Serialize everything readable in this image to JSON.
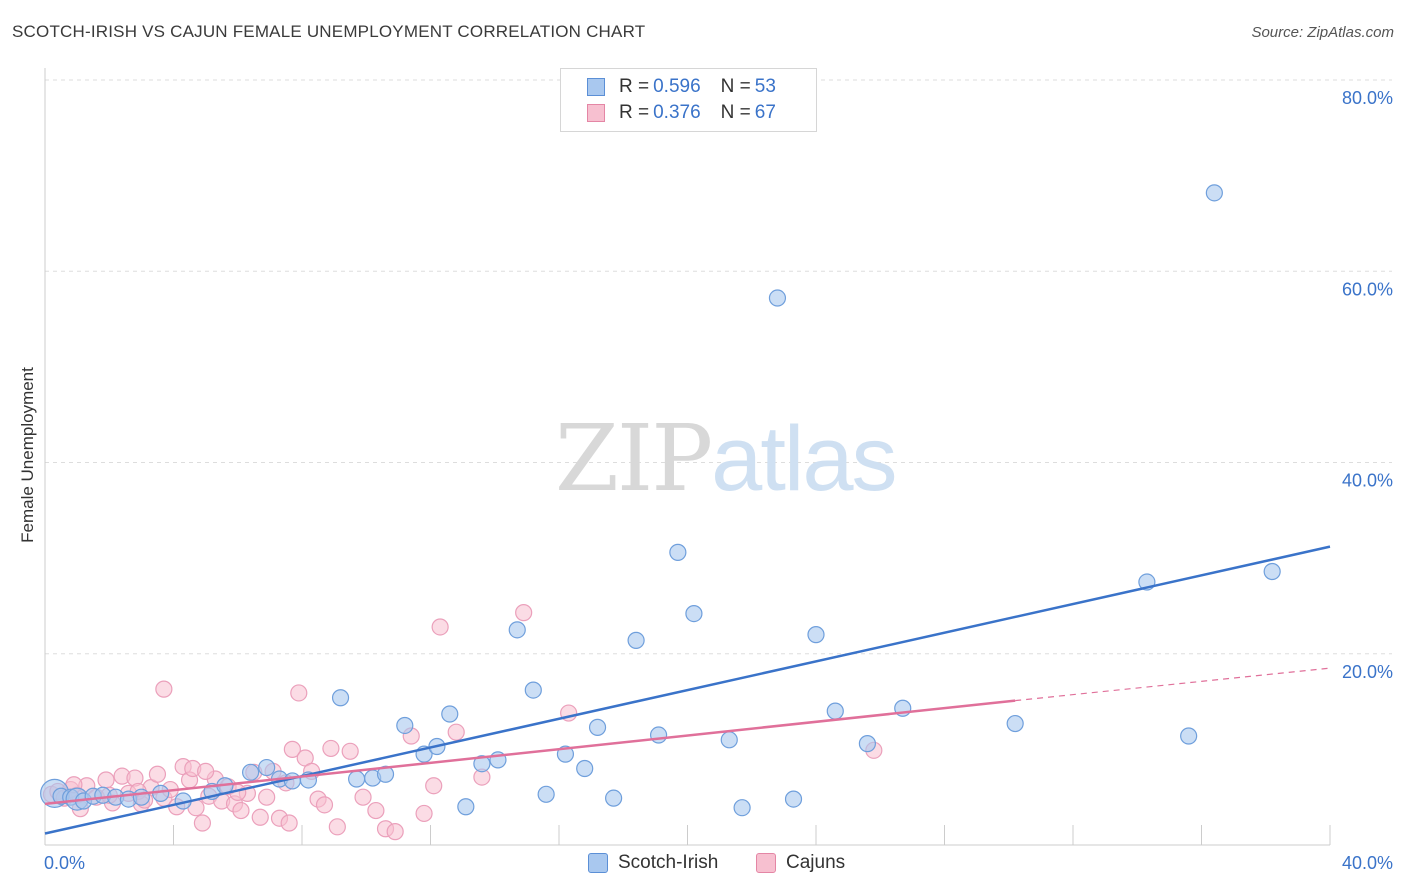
{
  "header": {
    "title": "SCOTCH-IRISH VS CAJUN FEMALE UNEMPLOYMENT CORRELATION CHART",
    "source": "Source: ZipAtlas.com"
  },
  "watermark": {
    "zip": "ZIP",
    "atlas": "atlas"
  },
  "legend": {
    "rows": [
      {
        "r_label": "R =",
        "r_value": "0.596",
        "n_label": "N =",
        "n_value": "53",
        "color": "#a9c8ef",
        "border": "#5b8fd6"
      },
      {
        "r_label": "R =",
        "r_value": "0.376",
        "n_label": "N =",
        "n_value": "67",
        "color": "#f7c0d0",
        "border": "#e486a5"
      }
    ]
  },
  "bottom_legend": {
    "series1": "Scotch-Irish",
    "series2": "Cajuns"
  },
  "chart_data": {
    "type": "scatter",
    "ylabel": "Female Unemployment",
    "xlim": [
      0,
      40
    ],
    "ylim": [
      0,
      80
    ],
    "x_tick_labels": [
      "0.0%",
      "40.0%"
    ],
    "y_tick_labels": [
      "20.0%",
      "40.0%",
      "60.0%",
      "80.0%"
    ],
    "y_ticks": [
      20,
      40,
      60,
      80
    ],
    "grid": true,
    "legend_position": "top-center",
    "colors": {
      "blue": "#3a73c9",
      "blue_fill": "#a9c8ef",
      "pink": "#e0709a",
      "pink_fill": "#f7c0d0",
      "tick_label": "#3a73c9"
    },
    "series": [
      {
        "name": "Scotch-Irish",
        "trend": {
          "x": [
            0,
            40
          ],
          "y": [
            1.2,
            31.2
          ],
          "dashed_from": null
        },
        "points": [
          [
            0.3,
            5.4
          ],
          [
            0.5,
            5.1
          ],
          [
            0.8,
            5.0
          ],
          [
            1.0,
            4.8
          ],
          [
            1.2,
            4.6
          ],
          [
            1.5,
            5.1
          ],
          [
            1.8,
            5.2
          ],
          [
            2.2,
            5.0
          ],
          [
            2.6,
            4.8
          ],
          [
            3.0,
            5.0
          ],
          [
            3.6,
            5.4
          ],
          [
            4.3,
            4.6
          ],
          [
            5.2,
            5.6
          ],
          [
            5.6,
            6.2
          ],
          [
            6.4,
            7.6
          ],
          [
            6.9,
            8.1
          ],
          [
            7.3,
            6.9
          ],
          [
            7.7,
            6.7
          ],
          [
            8.2,
            6.8
          ],
          [
            9.2,
            15.4
          ],
          [
            9.7,
            6.9
          ],
          [
            10.2,
            7.0
          ],
          [
            10.6,
            7.4
          ],
          [
            11.2,
            12.5
          ],
          [
            11.8,
            9.5
          ],
          [
            12.2,
            10.3
          ],
          [
            12.6,
            13.7
          ],
          [
            13.1,
            4.0
          ],
          [
            13.6,
            8.5
          ],
          [
            14.1,
            8.9
          ],
          [
            14.7,
            22.5
          ],
          [
            15.2,
            16.2
          ],
          [
            15.6,
            5.3
          ],
          [
            16.2,
            9.5
          ],
          [
            16.8,
            8.0
          ],
          [
            17.2,
            12.3
          ],
          [
            17.7,
            4.9
          ],
          [
            18.4,
            21.4
          ],
          [
            19.1,
            11.5
          ],
          [
            19.7,
            30.6
          ],
          [
            20.2,
            24.2
          ],
          [
            21.3,
            11.0
          ],
          [
            21.7,
            3.9
          ],
          [
            22.8,
            57.2
          ],
          [
            23.3,
            4.8
          ],
          [
            24.0,
            22.0
          ],
          [
            24.6,
            14.0
          ],
          [
            25.6,
            10.6
          ],
          [
            26.7,
            14.3
          ],
          [
            30.2,
            12.7
          ],
          [
            34.3,
            27.5
          ],
          [
            35.6,
            11.4
          ],
          [
            36.4,
            68.2
          ],
          [
            38.2,
            28.6
          ]
        ]
      },
      {
        "name": "Cajuns",
        "trend": {
          "x": [
            0,
            30.2
          ],
          "y": [
            4.3,
            15.1
          ],
          "dashed_to": [
            40,
            18.5
          ]
        },
        "points": [
          [
            0.2,
            5.3
          ],
          [
            0.4,
            5.6
          ],
          [
            0.6,
            4.9
          ],
          [
            0.8,
            5.8
          ],
          [
            1.0,
            5.2
          ],
          [
            1.3,
            6.2
          ],
          [
            1.6,
            5.0
          ],
          [
            1.9,
            6.8
          ],
          [
            2.1,
            4.4
          ],
          [
            2.4,
            7.2
          ],
          [
            2.6,
            5.4
          ],
          [
            2.8,
            7.0
          ],
          [
            3.0,
            4.3
          ],
          [
            3.3,
            6.0
          ],
          [
            3.5,
            7.4
          ],
          [
            3.7,
            4.9
          ],
          [
            3.9,
            5.8
          ],
          [
            4.1,
            4.0
          ],
          [
            4.3,
            8.2
          ],
          [
            4.5,
            6.8
          ],
          [
            4.7,
            3.9
          ],
          [
            4.9,
            2.3
          ],
          [
            5.1,
            5.1
          ],
          [
            5.3,
            6.9
          ],
          [
            5.5,
            4.6
          ],
          [
            5.7,
            6.1
          ],
          [
            5.9,
            4.3
          ],
          [
            6.1,
            3.6
          ],
          [
            6.3,
            5.4
          ],
          [
            6.5,
            7.6
          ],
          [
            6.7,
            2.9
          ],
          [
            6.9,
            5.0
          ],
          [
            7.1,
            7.7
          ],
          [
            7.3,
            2.8
          ],
          [
            7.5,
            6.5
          ],
          [
            7.7,
            10.0
          ],
          [
            7.9,
            15.9
          ],
          [
            8.1,
            9.1
          ],
          [
            8.3,
            7.7
          ],
          [
            8.5,
            4.8
          ],
          [
            8.7,
            4.2
          ],
          [
            8.9,
            10.1
          ],
          [
            9.1,
            1.9
          ],
          [
            9.5,
            9.8
          ],
          [
            9.9,
            5.0
          ],
          [
            10.3,
            3.6
          ],
          [
            10.6,
            1.7
          ],
          [
            10.9,
            1.4
          ],
          [
            11.4,
            11.4
          ],
          [
            11.8,
            3.3
          ],
          [
            12.1,
            6.2
          ],
          [
            12.3,
            22.8
          ],
          [
            12.8,
            11.8
          ],
          [
            13.6,
            7.1
          ],
          [
            14.9,
            24.3
          ],
          [
            16.3,
            13.8
          ],
          [
            25.8,
            9.9
          ],
          [
            3.7,
            16.3
          ],
          [
            4.6,
            8.0
          ],
          [
            5.0,
            7.7
          ],
          [
            1.1,
            3.8
          ],
          [
            2.0,
            5.2
          ],
          [
            2.9,
            5.6
          ],
          [
            3.1,
            4.7
          ],
          [
            6.0,
            5.5
          ],
          [
            7.6,
            2.3
          ],
          [
            0.9,
            6.3
          ]
        ]
      }
    ]
  }
}
